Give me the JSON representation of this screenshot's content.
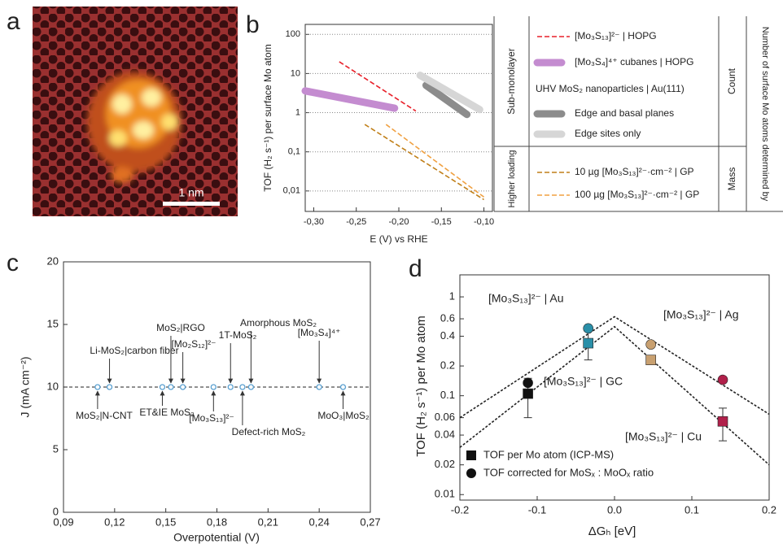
{
  "panels": [
    "a",
    "b",
    "c",
    "d"
  ],
  "image": {
    "scale_bar_label": "1 nm"
  },
  "chart_data": [
    {
      "type": "line",
      "log_y": true,
      "grid": "y",
      "y_label": "TOF (H₂ s⁻¹) per surface Mo atom",
      "x_label": "E (V) vs RHE",
      "xlim": [
        -0.31,
        -0.09
      ],
      "xticks": [
        {
          "value": -0.3,
          "label": "-0,30"
        },
        {
          "value": -0.25,
          "label": "-0,25"
        },
        {
          "value": -0.2,
          "label": "-0,20"
        },
        {
          "value": -0.15,
          "label": "-0,15"
        },
        {
          "value": -0.1,
          "label": "-0,10"
        }
      ],
      "ylim": [
        0.003,
        180
      ],
      "yticks": [
        {
          "value": 0.01,
          "label": "0,01"
        },
        {
          "value": 0.1,
          "label": "0,1"
        },
        1,
        10,
        100
      ],
      "series": [
        {
          "name": "[Mo₃S₁₃]²⁻ | HOPG",
          "color": "#e8202a",
          "style": "dashed",
          "x": [
            -0.27,
            -0.18
          ],
          "values": [
            20,
            1.1
          ]
        },
        {
          "name": "[Mo₃S₄]⁴⁺ cubanes | HOPG",
          "color": "#c48cd0",
          "style": "band",
          "x": [
            -0.31,
            -0.205
          ],
          "values": [
            3.6,
            1.3
          ]
        },
        {
          "name": "Edge and basal planes",
          "color": "#8c8c8c",
          "style": "band",
          "x": [
            -0.168,
            -0.12
          ],
          "values": [
            5,
            0.9
          ]
        },
        {
          "name": "Edge sites only",
          "color": "#d6d6d6",
          "style": "band",
          "x": [
            -0.175,
            -0.105
          ],
          "values": [
            9,
            1.2
          ]
        },
        {
          "name": "10 µg [Mo₃S₁₃]²⁻·cm⁻² | GP",
          "color": "#c07f18",
          "style": "dashed",
          "x": [
            -0.24,
            -0.1
          ],
          "values": [
            0.5,
            0.006
          ]
        },
        {
          "name": "100 µg [Mo₃S₁₃]²⁻·cm⁻² | GP",
          "color": "#f0a040",
          "style": "dashed",
          "x": [
            -0.215,
            -0.1
          ],
          "values": [
            0.5,
            0.007
          ]
        }
      ],
      "legend_header": "Number of surface Mo atoms determined by",
      "legend_subheader": "UHV MoS₂ nanoparticles | Au(111)",
      "legend_groups": [
        {
          "label": "Sub-monolayer",
          "method": "Count"
        },
        {
          "label": "Higher loading",
          "method": "Mass"
        }
      ]
    },
    {
      "type": "scatter",
      "y_label": "J (mA cm⁻²)",
      "x_label": "Overpotential (V)",
      "xlim": [
        0.09,
        0.27
      ],
      "xticks": [
        {
          "value": 0.09,
          "label": "0,09"
        },
        {
          "value": 0.12,
          "label": "0,12"
        },
        {
          "value": 0.15,
          "label": "0,15"
        },
        {
          "value": 0.18,
          "label": "0,18"
        },
        {
          "value": 0.21,
          "label": "0,21"
        },
        {
          "value": 0.24,
          "label": "0,24"
        },
        {
          "value": 0.27,
          "label": "0,27"
        }
      ],
      "ylim": [
        0,
        20
      ],
      "yticks": [
        0,
        5,
        10,
        15,
        20
      ],
      "reference_line": 10,
      "color": "#5aa0d0",
      "x": [
        0.11,
        0.117,
        0.148,
        0.153,
        0.16,
        0.178,
        0.188,
        0.195,
        0.2,
        0.24,
        0.254
      ],
      "values": [
        10,
        10,
        10,
        10,
        10,
        10,
        10,
        10,
        10,
        10,
        10
      ],
      "point_labels": [
        "MoS₂|N-CNT",
        "Li-MoS₂|carbon fiber",
        "ET&IE MoS₂",
        "MoS₂|RGO",
        "[Mo₂S₁₂]²⁻",
        "[Mo₃S₁₃]²⁻",
        "1T-MoS₂",
        "Defect-rich MoS₂",
        "Amorphous MoS₂",
        "[Mo₃S₄]⁴⁺",
        "MoO₃|MoS₂"
      ],
      "label_colors": [
        "#222222",
        "#222222",
        "#222222",
        "#222222",
        "#e02020",
        "#222222",
        "#222222",
        "#222222",
        "#222222",
        "#222222",
        "#222222"
      ]
    },
    {
      "type": "scatter",
      "log_y": true,
      "y_label": "TOF (H₂ s⁻¹) per Mo atom",
      "x_label": "ΔGₕ [eV]",
      "xlim": [
        -0.2,
        0.2
      ],
      "xticks": [
        -0.2,
        -0.1,
        {
          "value": 0,
          "label": "0.0"
        },
        0.1,
        0.2
      ],
      "ylim": [
        0.0088,
        1.67
      ],
      "yticks": [
        0.01,
        0.02,
        0.04,
        0.06,
        0.1,
        0.2,
        0.4,
        0.6,
        1
      ],
      "series": [
        {
          "name": "TOF per Mo atom (ICP-MS)",
          "marker": "square",
          "color": "#111111",
          "x": [
            -0.112,
            -0.034,
            0.047,
            0.14
          ],
          "values": [
            0.105,
            0.34,
            0.23,
            0.055
          ],
          "errors": [
            0.045,
            0.11,
            0.02,
            0.02
          ],
          "point_colors": [
            "#111111",
            "#2a8fa8",
            "#c8a070",
            "#b0204a"
          ]
        },
        {
          "name": "TOF corrected for MoSₓ : MoOₓ ratio",
          "marker": "circle",
          "color": "#111111",
          "x": [
            -0.112,
            -0.034,
            0.047,
            0.14
          ],
          "values": [
            0.135,
            0.48,
            0.33,
            0.145
          ],
          "point_colors": [
            "#111111",
            "#2a8fa8",
            "#c8a070",
            "#b0204a"
          ]
        }
      ],
      "volcano_lines": [
        {
          "x": [
            -0.2,
            0,
            0.2
          ],
          "values": [
            0.06,
            0.63,
            0.065
          ]
        },
        {
          "x": [
            -0.2,
            0,
            0.2
          ],
          "values": [
            0.03,
            0.5,
            0.02
          ]
        }
      ],
      "annotations": [
        {
          "text": "[Mo₃S₁₃]²⁻ | Au",
          "color": "#2a8fa8"
        },
        {
          "text": "[Mo₃S₁₃]²⁻ | Ag",
          "color": "#c8a070"
        },
        {
          "text": "[Mo₃S₁₃]²⁻ | GC",
          "color": "#111111"
        },
        {
          "text": "[Mo₃S₁₃]²⁻ | Cu",
          "color": "#b0204a"
        }
      ]
    }
  ]
}
